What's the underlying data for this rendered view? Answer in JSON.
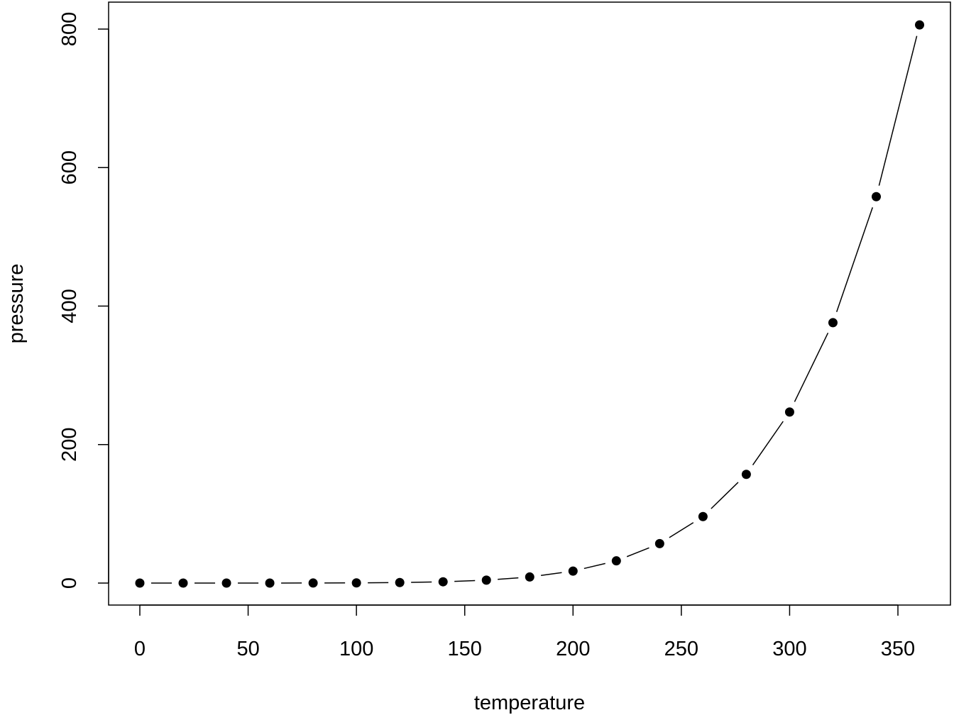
{
  "chart_data": {
    "type": "line",
    "style": "points-and-lines",
    "xlabel": "temperature",
    "ylabel": "pressure",
    "xlim": [
      -7.2,
      367.2
    ],
    "ylim": [
      -32.2,
      838.2
    ],
    "xticks": [
      0,
      50,
      100,
      150,
      200,
      250,
      300,
      350
    ],
    "yticks": [
      0,
      200,
      400,
      600,
      800
    ],
    "grid": false,
    "colors": {
      "points": "#000000",
      "line": "#000000"
    },
    "x": [
      0,
      20,
      40,
      60,
      80,
      100,
      120,
      140,
      160,
      180,
      200,
      220,
      240,
      260,
      280,
      300,
      320,
      340,
      360
    ],
    "y": [
      0.0002,
      0.0012,
      0.006,
      0.03,
      0.09,
      0.27,
      0.75,
      1.85,
      4.2,
      8.8,
      17.3,
      32.1,
      57,
      96,
      157,
      247,
      376,
      558,
      806
    ]
  }
}
